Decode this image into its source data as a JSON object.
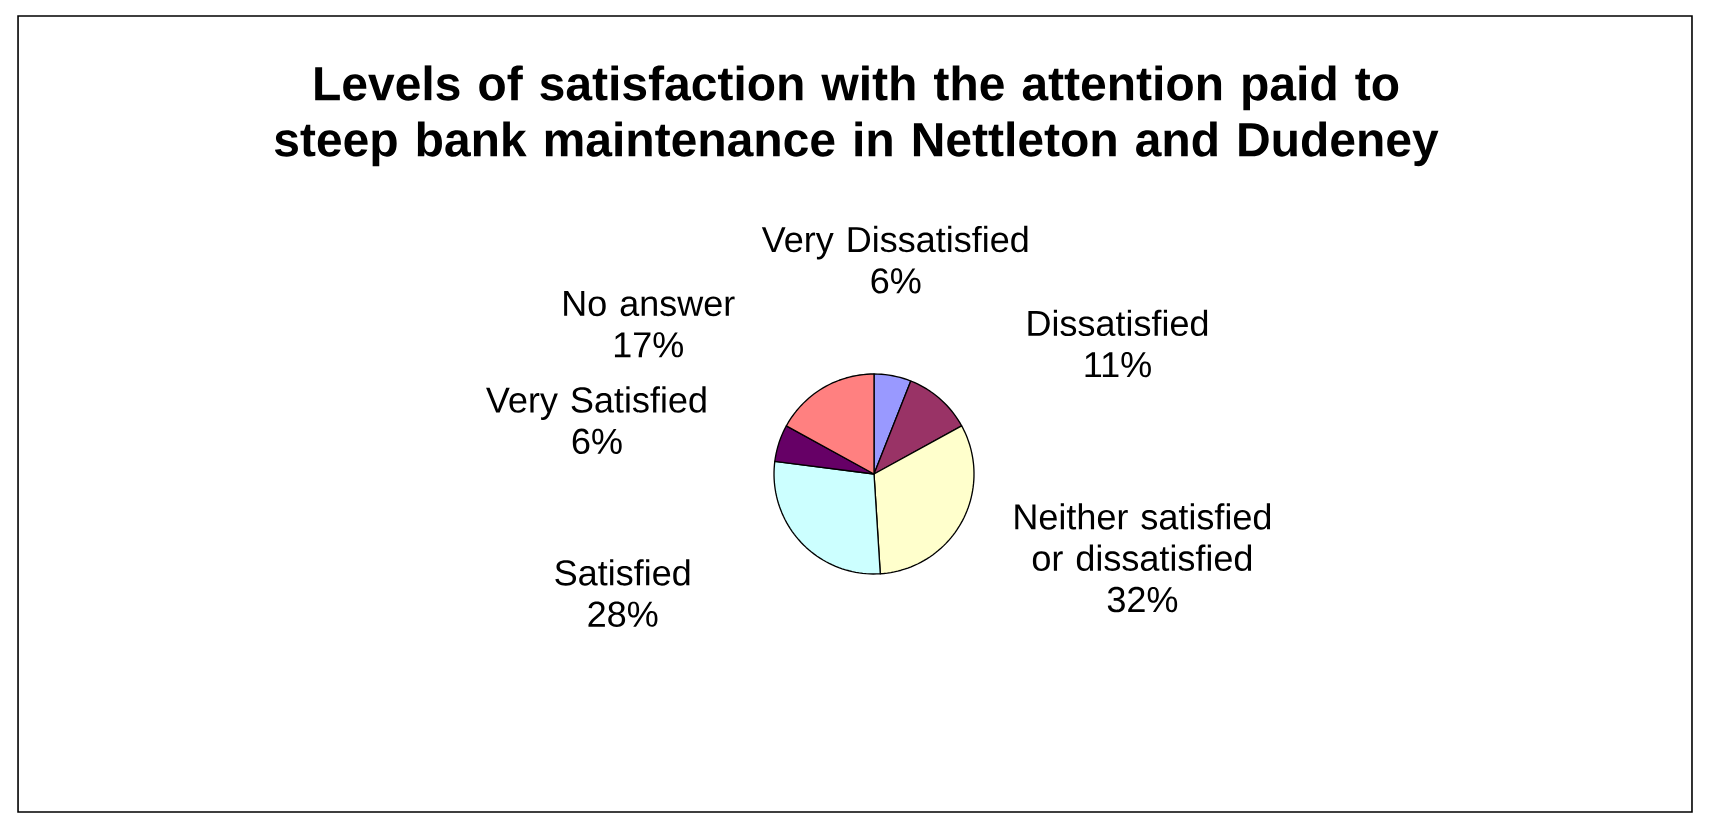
{
  "chart_data": {
    "type": "pie",
    "title": "Levels of satisfaction with the attention paid to steep bank maintenance in Nettleton and Dudeney",
    "categories": [
      "Very Dissatisfied",
      "Dissatisfied",
      "Neither satisfied or dissatisfied",
      "Satisfied",
      "Very Satisfied",
      "No answer"
    ],
    "values": [
      6,
      11,
      32,
      28,
      6,
      17
    ],
    "value_labels": [
      "6%",
      "11%",
      "32%",
      "28%",
      "6%",
      "17%"
    ],
    "colors": [
      "#9999ff",
      "#993366",
      "#ffffcc",
      "#ccffff",
      "#660066",
      "#ff8080"
    ]
  }
}
